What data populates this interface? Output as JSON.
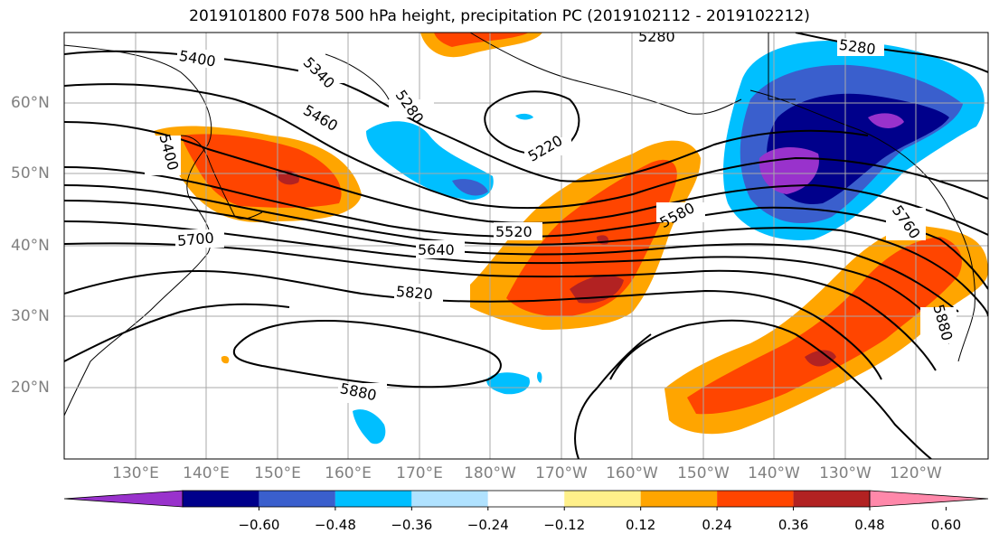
{
  "title": "2019101800 F078 500 hPa height, precipitation PC (2019102112 - 2019102212)",
  "lat_labels": [
    "60°N",
    "50°N",
    "40°N",
    "30°N",
    "20°N"
  ],
  "lon_labels": [
    "130°E",
    "140°E",
    "150°E",
    "160°E",
    "170°E",
    "180°W",
    "170°W",
    "160°W",
    "150°W",
    "140°W",
    "130°W",
    "120°W"
  ],
  "contour_labels": [
    "5400",
    "5340",
    "5460",
    "5280",
    "5280",
    "5280",
    "5220",
    "5400",
    "5520",
    "5580",
    "5640",
    "5700",
    "5820",
    "5880",
    "5880",
    "5760"
  ],
  "colorbar": {
    "colors": [
      "#9932cc",
      "#00008b",
      "#3a5fcd",
      "#00bfff",
      "#b0e2ff",
      "#ffffff",
      "#fff08a",
      "#ffa500",
      "#ff4500",
      "#b22222",
      "#ff88aa"
    ],
    "tick_labels": [
      "−0.60",
      "−0.48",
      "−0.36",
      "−0.24",
      "−0.12",
      "0.12",
      "0.24",
      "0.36",
      "0.48",
      "0.60"
    ]
  }
}
